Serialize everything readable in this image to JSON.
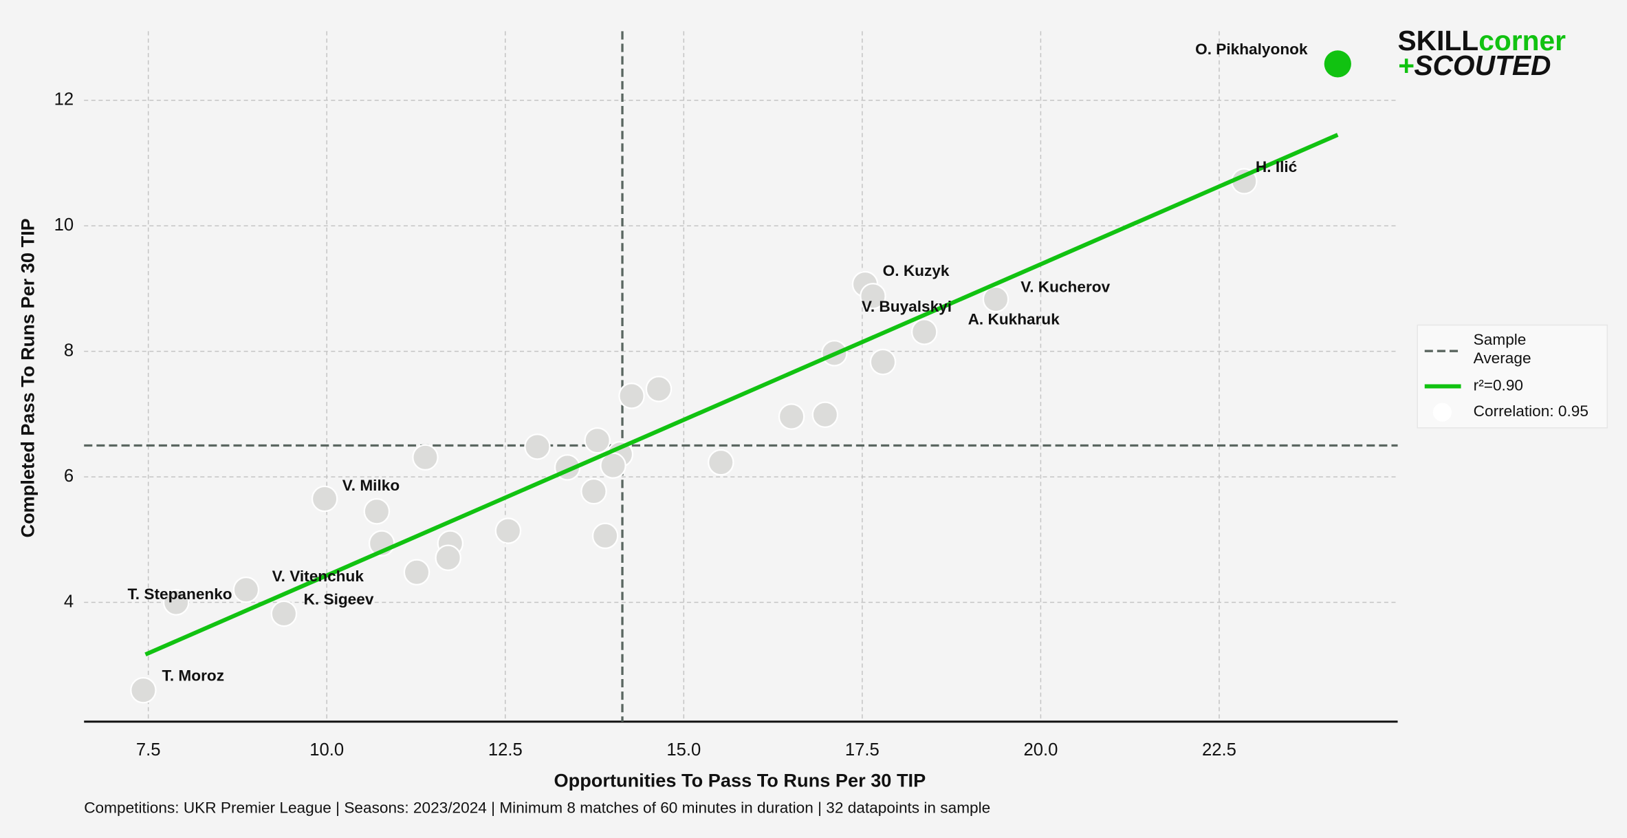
{
  "chart_data": {
    "type": "scatter",
    "xlabel": "Opportunities To Pass To Runs Per 30 TIP",
    "ylabel": "Completed Pass To Runs Per 30 TIP",
    "footnote": "Competitions: UKR Premier League | Seasons: 2023/2024 | Minimum 8 matches of 60 minutes in duration | 32 datapoints in sample",
    "xlim": [
      6.6,
      25.0
    ],
    "ylim": [
      2.1,
      13.1
    ],
    "xticks": [
      7.5,
      {
        "value": 10,
        "label": "10.0"
      },
      12.5,
      {
        "value": 15,
        "label": "15.0"
      },
      17.5,
      {
        "value": 20,
        "label": "20.0"
      },
      22.5
    ],
    "yticks": [
      4,
      6,
      8,
      10,
      12
    ],
    "grid": true,
    "x": [
      24.16,
      22.85,
      17.54,
      17.65,
      19.37,
      18.37,
      9.97,
      8.87,
      7.89,
      9.4,
      7.43,
      17.11,
      17.79,
      16.98,
      16.51,
      15.52,
      14.65,
      14.27,
      14.11,
      13.79,
      13.37,
      13.74,
      13.9,
      12.95,
      12.54,
      11.38,
      10.7,
      10.77,
      11.73,
      11.7,
      11.26,
      14.01
    ],
    "y": [
      12.58,
      10.71,
      9.07,
      8.88,
      8.83,
      8.31,
      5.65,
      4.2,
      4.0,
      3.82,
      2.6,
      7.97,
      7.83,
      6.99,
      6.96,
      6.23,
      7.4,
      7.29,
      6.36,
      6.58,
      6.15,
      5.77,
      5.06,
      6.48,
      5.14,
      6.31,
      5.45,
      4.94,
      4.94,
      4.71,
      4.48,
      6.18
    ],
    "labels": [
      "O. Pikhalyonok",
      "H. Ilić",
      "O. Kuzyk",
      "V. Buyalskyi",
      "V. Kucherov",
      "A. Kukharuk",
      "V. Milko",
      "V. Vitenchuk",
      "T. Stepanenko",
      "K. Sigeev",
      "T. Moroz",
      null,
      null,
      null,
      null,
      null,
      null,
      null,
      null,
      null,
      null,
      null,
      null,
      null,
      null,
      null,
      null,
      null,
      null,
      null,
      null,
      null
    ],
    "colors": [
      "#11c211",
      "#dcdcda",
      "#dcdcda",
      "#dcdcda",
      "#dcdcda",
      "#dcdcda",
      "#dcdcda",
      "#dcdcda",
      "#dcdcda",
      "#dcdcda",
      "#dcdcda",
      "#dcdcda",
      "#dcdcda",
      "#dcdcda",
      "#dcdcda",
      "#dcdcda",
      "#dcdcda",
      "#dcdcda",
      "#dcdcda",
      "#dcdcda",
      "#dcdcda",
      "#dcdcda",
      "#dcdcda",
      "#dcdcda",
      "#dcdcda",
      "#dcdcda",
      "#dcdcda",
      "#dcdcda",
      "#dcdcda",
      "#dcdcda",
      "#dcdcda",
      "#dcdcda"
    ],
    "x_mean": 14.14,
    "y_mean": 6.5,
    "mean_color": "#5a6660",
    "fit": {
      "x": [
        7.46,
        24.16
      ],
      "y": [
        3.17,
        11.45
      ],
      "color": "#11c211"
    },
    "legend": [
      "Sample Average",
      "r²=0.90",
      "Correlation: 0.95"
    ],
    "logo": [
      "SKILL",
      "corner",
      "+",
      "SCOUTED"
    ]
  }
}
